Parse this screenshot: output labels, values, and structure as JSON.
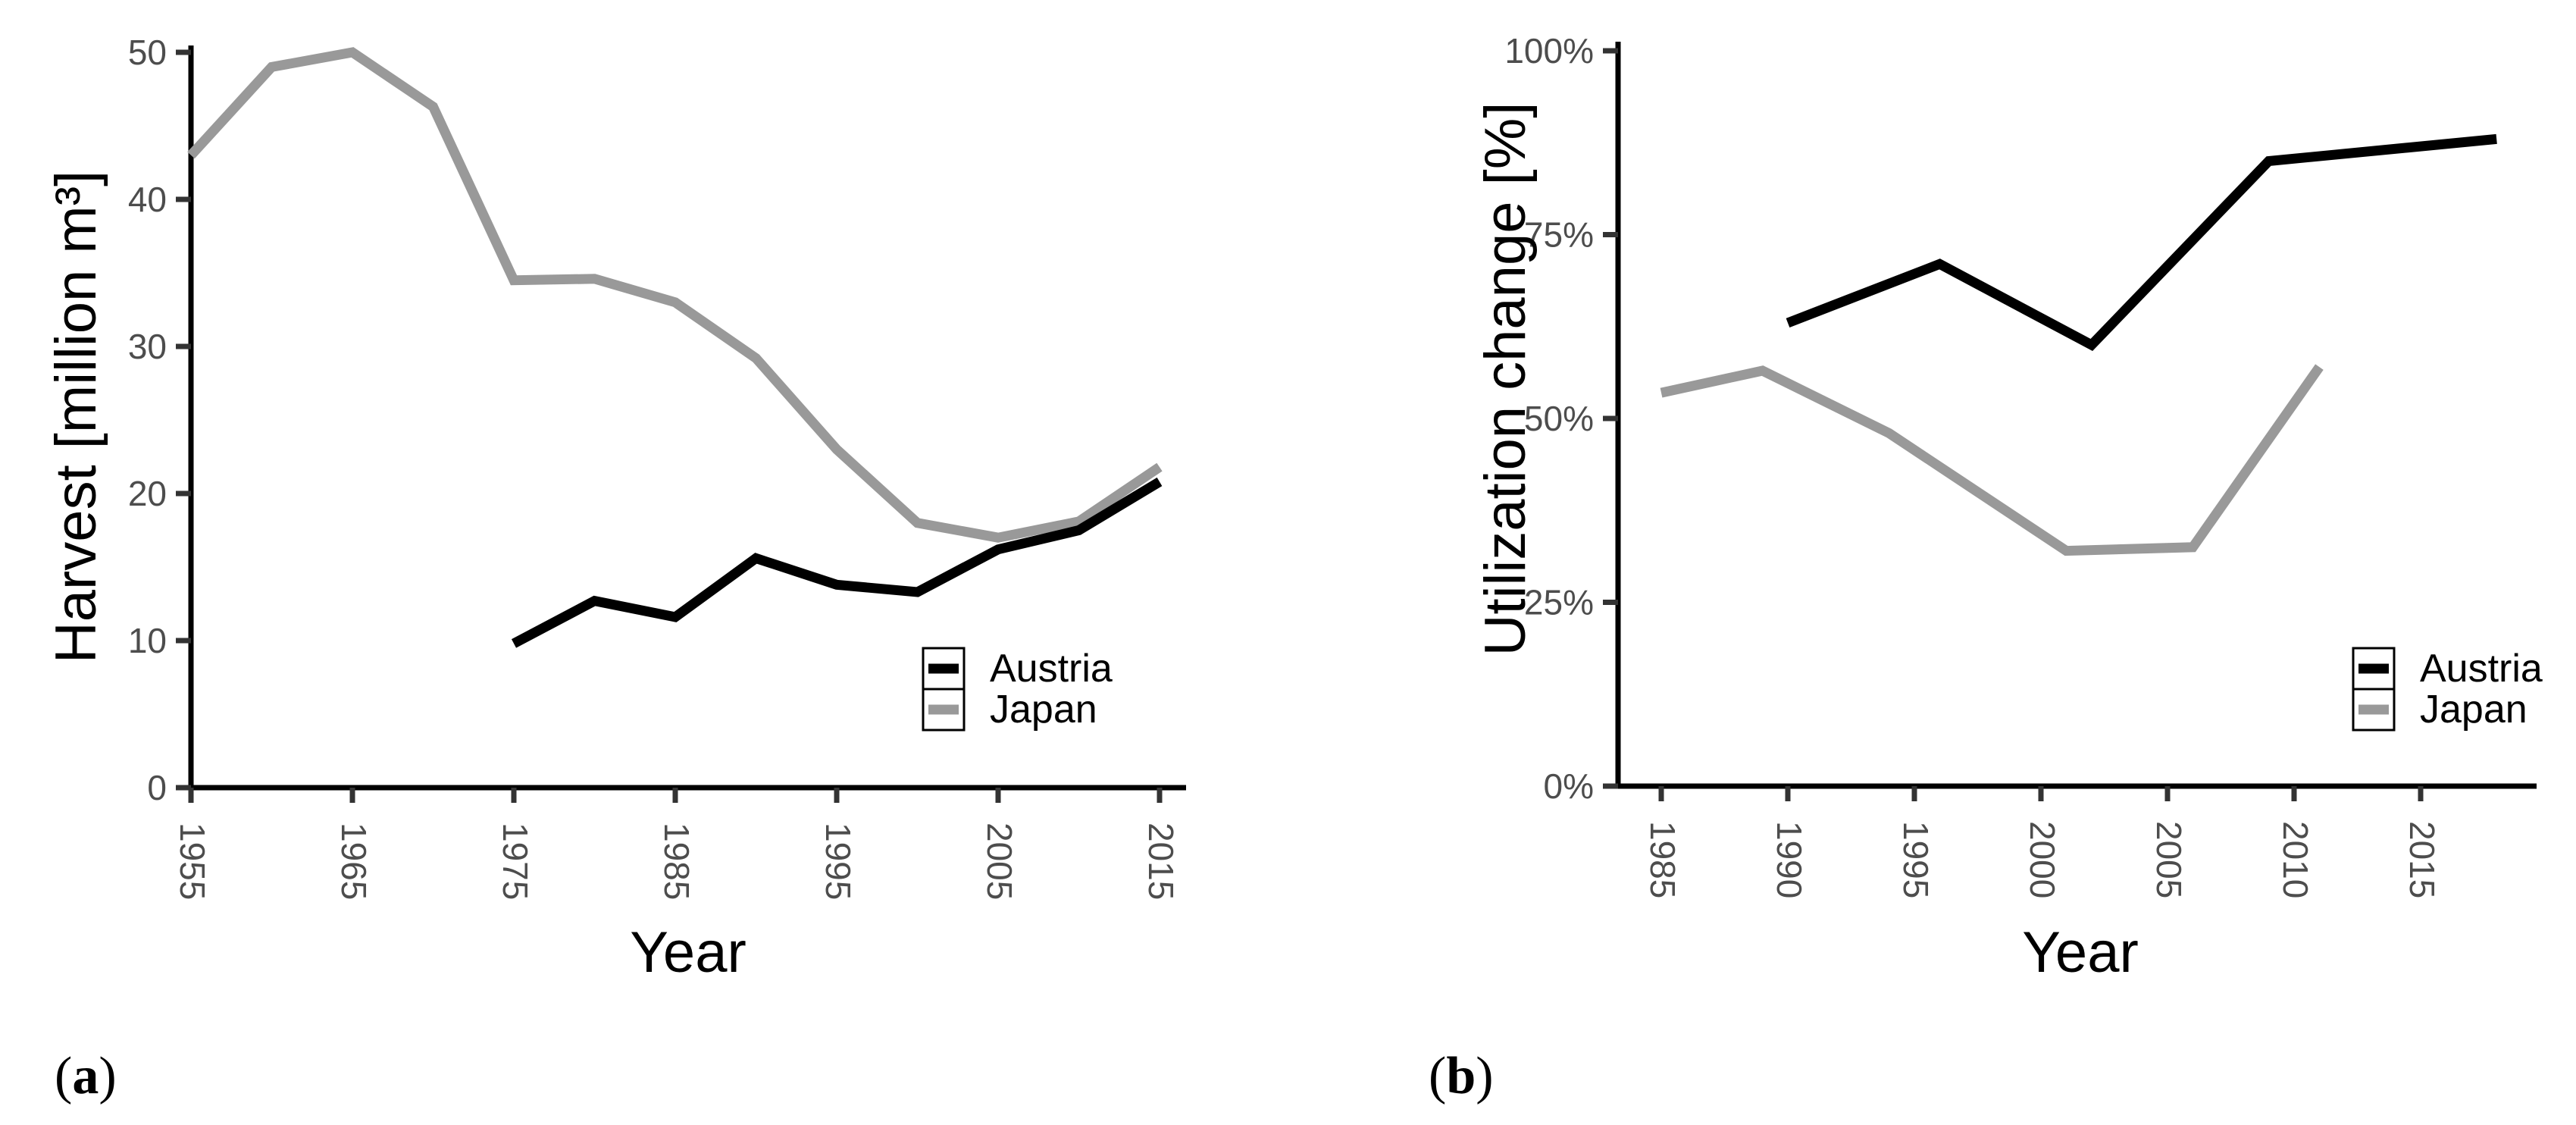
{
  "figure": {
    "captions": {
      "a": {
        "open": "(",
        "letter": "a",
        "close": ")"
      },
      "b": {
        "open": "(",
        "letter": "b",
        "close": ")"
      }
    }
  },
  "colors": {
    "austria": "#000000",
    "japan": "#999999",
    "axis_line": "#000000",
    "tick_mark": "#333333",
    "tick_text": "#4d4d4d",
    "title_text": "#000000",
    "background": "#ffffff"
  },
  "chart_data": [
    {
      "panel": "a",
      "type": "line",
      "title": "",
      "xlabel": "Year",
      "ylabel": "Harvest [million m³]",
      "xlim": [
        1953,
        2017
      ],
      "ylim": [
        0,
        50.5
      ],
      "grid": false,
      "legend_position": "inside-bottom-right",
      "xticks": [
        1955,
        1965,
        1975,
        1985,
        1995,
        2005,
        2015
      ],
      "yticks": [
        {
          "v": 0,
          "label": "0"
        },
        {
          "v": 10,
          "label": "10"
        },
        {
          "v": 20,
          "label": "20"
        },
        {
          "v": 30,
          "label": "30"
        },
        {
          "v": 40,
          "label": "40"
        },
        {
          "v": 50,
          "label": "50"
        }
      ],
      "series": [
        {
          "name": "Japan",
          "color": "#999999",
          "points": [
            [
              1955,
              43.0
            ],
            [
              1960,
              49.0
            ],
            [
              1965,
              50.0
            ],
            [
              1970,
              46.3
            ],
            [
              1975,
              34.5
            ],
            [
              1980,
              34.6
            ],
            [
              1985,
              33.0
            ],
            [
              1990,
              29.2
            ],
            [
              1995,
              23.0
            ],
            [
              2000,
              18.0
            ],
            [
              2005,
              17.0
            ],
            [
              2010,
              18.1
            ],
            [
              2015,
              21.8
            ]
          ]
        },
        {
          "name": "Austria",
          "color": "#000000",
          "points": [
            [
              1975,
              9.8
            ],
            [
              1980,
              12.7
            ],
            [
              1985,
              11.6
            ],
            [
              1990,
              15.6
            ],
            [
              1995,
              13.8
            ],
            [
              2000,
              13.3
            ],
            [
              2005,
              16.2
            ],
            [
              2010,
              17.5
            ],
            [
              2015,
              20.8
            ]
          ]
        }
      ],
      "legend": [
        {
          "name": "Austria",
          "color": "#000000"
        },
        {
          "name": "Japan",
          "color": "#999999"
        }
      ]
    },
    {
      "panel": "b",
      "type": "line",
      "title": "",
      "xlabel": "Year",
      "ylabel": "Utilization change [%]",
      "xlim": [
        1983,
        2019.5
      ],
      "ylim": [
        0,
        100
      ],
      "grid": false,
      "legend_position": "inside-bottom-right",
      "xticks": [
        1985,
        1990,
        1995,
        2000,
        2005,
        2010,
        2015
      ],
      "yticks": [
        {
          "v": 0,
          "label": "0%"
        },
        {
          "v": 25,
          "label": "25%"
        },
        {
          "v": 50,
          "label": "50%"
        },
        {
          "v": 75,
          "label": "75%"
        },
        {
          "v": 100,
          "label": "100%"
        }
      ],
      "series": [
        {
          "name": "Japan",
          "color": "#999999",
          "points": [
            [
              1985,
              53.5
            ],
            [
              1989,
              56.5
            ],
            [
              1994,
              48.0
            ],
            [
              2001,
              32.0
            ],
            [
              2006,
              32.5
            ],
            [
              2011,
              57.0
            ]
          ]
        },
        {
          "name": "Austria",
          "color": "#000000",
          "points": [
            [
              1990,
              63.0
            ],
            [
              1996,
              71.0
            ],
            [
              2002,
              60.0
            ],
            [
              2009,
              85.0
            ],
            [
              2018,
              88.0
            ]
          ]
        }
      ],
      "legend": [
        {
          "name": "Austria",
          "color": "#000000"
        },
        {
          "name": "Japan",
          "color": "#999999"
        }
      ]
    }
  ]
}
